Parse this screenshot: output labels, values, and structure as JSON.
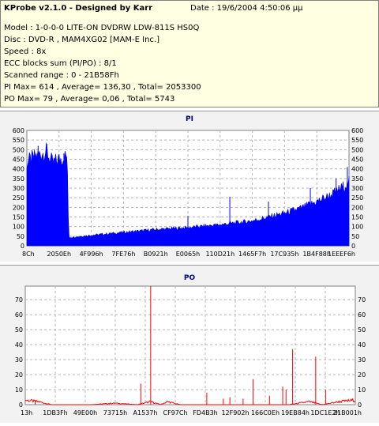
{
  "header": {
    "title": "KProbe v2.1.0 - Designed by Karr",
    "date": "Date : 19/6/2004 4:50:06 μμ",
    "model": "Model : 1-0-0-0 LITE-ON DVDRW LDW-811S   HS0Q",
    "disc": "Disc : DVD-R , MAM4XG02 [MAM-E Inc.]",
    "speed": "Speed : 8x",
    "ecc": "ECC blocks sum (PI/PO) : 8/1",
    "range": "Scanned range : 0 - 21B58Fh",
    "pi_stats": "PI Max= 614 , Average= 136,30 , Total= 2053300",
    "po_stats": "PO Max= 79 , Average= 0,06 , Total= 5743"
  },
  "colors": {
    "pi_fill": "#0000ff",
    "po_line": "#ff0000",
    "plot_bg": "#ffffff",
    "panel_bg": "#f2f2f2",
    "info_bg": "#ffffe1",
    "title_color": "#000080"
  },
  "chart_data": [
    {
      "type": "area",
      "title": "PI",
      "ylim": [
        0,
        600
      ],
      "yticks": [
        0,
        50,
        100,
        150,
        200,
        250,
        300,
        350,
        400,
        450,
        500,
        550,
        600
      ],
      "xticks": [
        "8Ch",
        "2050Eh",
        "4F996h",
        "7FE76h",
        "B0921h",
        "E0065h",
        "110D21h",
        "1465F7h",
        "17C935h",
        "1B4F88h",
        "1EEEF6h"
      ],
      "grid": true,
      "series": [
        {
          "x": [
            0,
            1,
            3,
            6,
            8,
            10,
            12.5,
            13,
            14,
            20,
            30,
            40,
            50,
            60,
            70,
            75,
            80,
            85,
            90,
            95,
            100
          ],
          "values": [
            435,
            445,
            470,
            490,
            430,
            450,
            470,
            45,
            45,
            55,
            70,
            85,
            95,
            110,
            130,
            150,
            170,
            195,
            230,
            270,
            330
          ]
        }
      ],
      "spikes": [
        {
          "x": 3.5,
          "value": 520
        },
        {
          "x": 6.2,
          "value": 530
        },
        {
          "x": 11.5,
          "value": 480
        },
        {
          "x": 50,
          "value": 155
        },
        {
          "x": 63,
          "value": 255
        },
        {
          "x": 75,
          "value": 230
        },
        {
          "x": 88,
          "value": 300
        },
        {
          "x": 96,
          "value": 350
        },
        {
          "x": 99.5,
          "value": 410
        }
      ]
    },
    {
      "type": "line",
      "title": "PO",
      "ylim": [
        0,
        79
      ],
      "yticks": [
        0,
        10,
        20,
        30,
        40,
        50,
        60,
        70
      ],
      "xticks": [
        "13h",
        "1DB3Fh",
        "49E00h",
        "73715h",
        "A1537h",
        "CF97Ch",
        "FD4B3h",
        "12F902h",
        "166C0Eh",
        "19EB84h",
        "1DC1E2h",
        "21B001h"
      ],
      "grid": true,
      "baseline": [
        {
          "x": 0,
          "value": 3
        },
        {
          "x": 4,
          "value": 2
        },
        {
          "x": 8,
          "value": 0
        },
        {
          "x": 20,
          "value": 0
        },
        {
          "x": 27,
          "value": 1
        },
        {
          "x": 34,
          "value": 0
        },
        {
          "x": 38,
          "value": 2
        },
        {
          "x": 41,
          "value": 0
        },
        {
          "x": 43,
          "value": 2
        },
        {
          "x": 47,
          "value": 0
        },
        {
          "x": 80,
          "value": 0
        },
        {
          "x": 86,
          "value": 2
        },
        {
          "x": 90,
          "value": 0
        },
        {
          "x": 95,
          "value": 2
        },
        {
          "x": 100,
          "value": 3
        }
      ],
      "spikes": [
        {
          "x": 3,
          "value": 3
        },
        {
          "x": 35,
          "value": 14
        },
        {
          "x": 38,
          "value": 79
        },
        {
          "x": 55,
          "value": 8
        },
        {
          "x": 60,
          "value": 4
        },
        {
          "x": 62,
          "value": 5
        },
        {
          "x": 66,
          "value": 4
        },
        {
          "x": 69,
          "value": 17
        },
        {
          "x": 74,
          "value": 6
        },
        {
          "x": 78,
          "value": 12
        },
        {
          "x": 79,
          "value": 10
        },
        {
          "x": 81,
          "value": 37
        },
        {
          "x": 88,
          "value": 32
        },
        {
          "x": 91,
          "value": 10
        }
      ]
    }
  ]
}
